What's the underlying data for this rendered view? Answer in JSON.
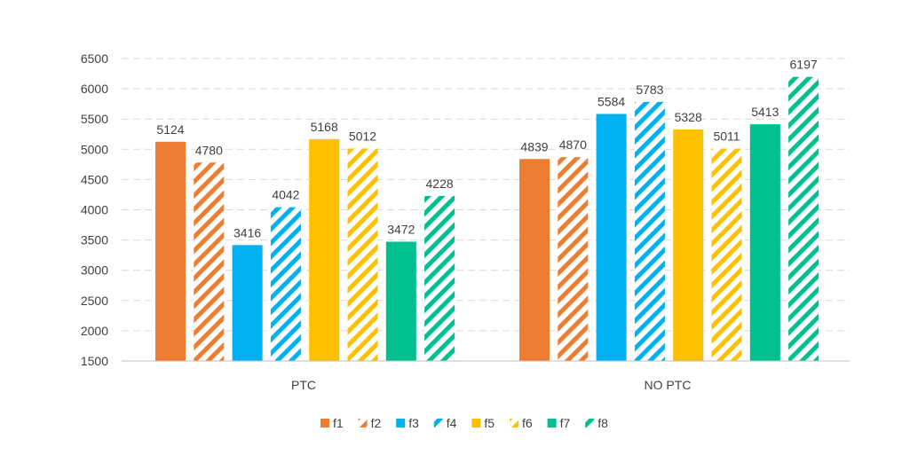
{
  "chart_data": {
    "type": "bar",
    "title": "",
    "xlabel": "",
    "ylabel": "",
    "ylim": [
      1500,
      6500
    ],
    "yticks": [
      1500,
      2000,
      2500,
      3000,
      3500,
      4000,
      4500,
      5000,
      5500,
      6000,
      6500
    ],
    "grid": true,
    "legend_position": "bottom",
    "categories": [
      "PTC",
      "NO PTC"
    ],
    "series": [
      {
        "name": "f1",
        "values": [
          5124,
          4839
        ],
        "color": "#ED7D31",
        "pattern": "solid"
      },
      {
        "name": "f2",
        "values": [
          4780,
          4870
        ],
        "color": "#ED7D31",
        "pattern": "hatched"
      },
      {
        "name": "f3",
        "values": [
          3416,
          5584
        ],
        "color": "#00B0F0",
        "pattern": "solid"
      },
      {
        "name": "f4",
        "values": [
          4042,
          5783
        ],
        "color": "#00B0F0",
        "pattern": "hatched"
      },
      {
        "name": "f5",
        "values": [
          5168,
          5328
        ],
        "color": "#FFC000",
        "pattern": "solid"
      },
      {
        "name": "f6",
        "values": [
          5012,
          5011
        ],
        "color": "#FFC000",
        "pattern": "hatched"
      },
      {
        "name": "f7",
        "values": [
          3472,
          5413
        ],
        "color": "#00C08F",
        "pattern": "solid"
      },
      {
        "name": "f8",
        "values": [
          4228,
          6197
        ],
        "color": "#00C08F",
        "pattern": "hatched"
      }
    ]
  }
}
